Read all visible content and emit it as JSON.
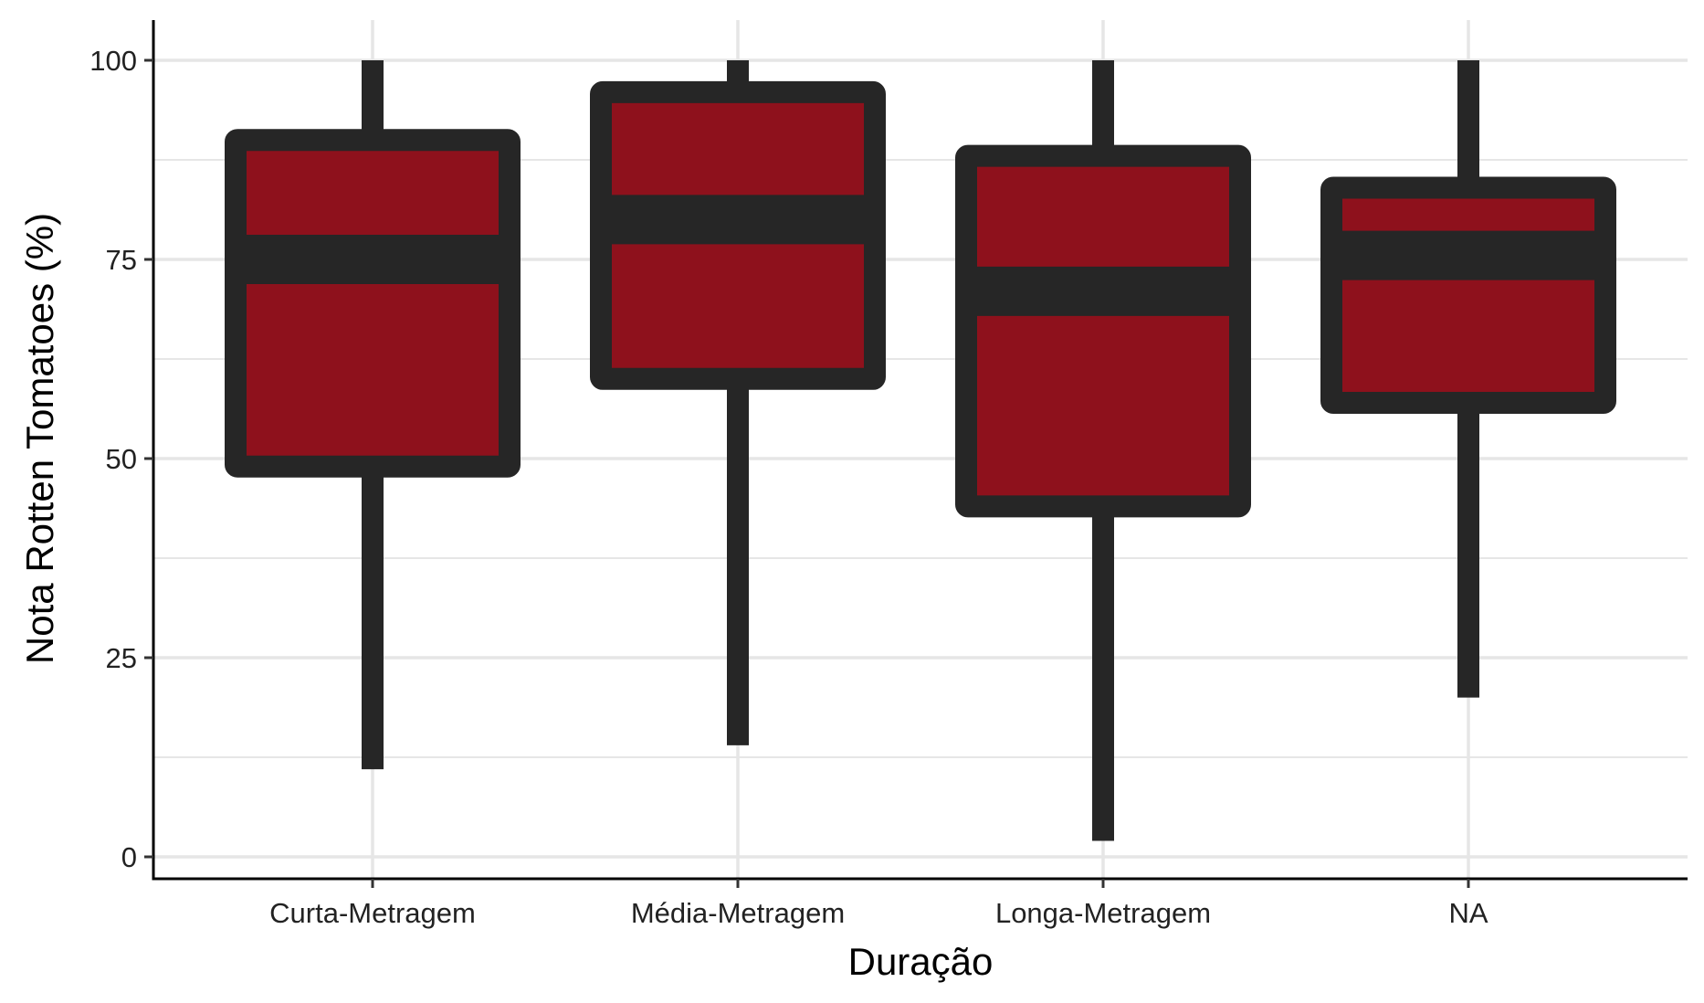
{
  "chart_data": {
    "type": "boxplot",
    "xlabel": "Duração",
    "ylabel": "Nota Rotten Tomatoes (%)",
    "ylim": [
      -6,
      105
    ],
    "y_ticks": [
      0,
      25,
      50,
      75,
      100
    ],
    "y_tick_labels": [
      "0",
      "25",
      "50",
      "75",
      "100"
    ],
    "categories": [
      "Curta-Metragem",
      "Média-Metragem",
      "Longa-Metragem",
      "NA"
    ],
    "boxes": [
      {
        "category": "Curta-Metragem",
        "min": 11,
        "q1": 49,
        "median": 75,
        "q3": 90,
        "max": 100
      },
      {
        "category": "Média-Metragem",
        "min": 14,
        "q1": 60,
        "median": 80,
        "q3": 96,
        "max": 100
      },
      {
        "category": "Longa-Metragem",
        "min": 2,
        "q1": 44,
        "median": 71,
        "q3": 88,
        "max": 100
      },
      {
        "category": "NA",
        "min": 20,
        "q1": 57,
        "median": 75.5,
        "q3": 84,
        "max": 100
      }
    ],
    "grid": true,
    "colors": {
      "box_fill": "#8e111c",
      "box_outline": "#262626",
      "grid": "#e6e6e6",
      "axis": "#000000"
    }
  }
}
